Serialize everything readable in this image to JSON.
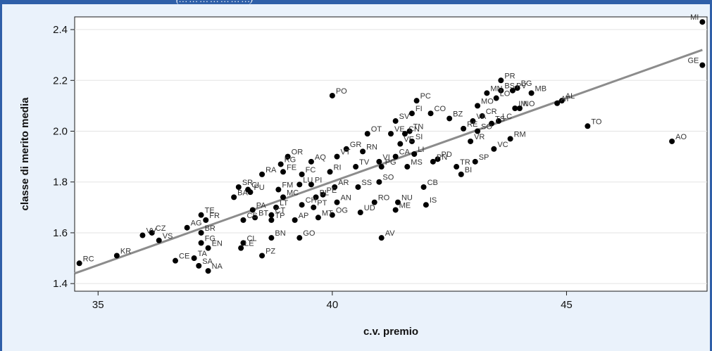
{
  "top_caption": "(…  …  …  …  …  …  …)",
  "chart_data": {
    "type": "scatter",
    "title": "",
    "xlabel": "c.v. premio",
    "ylabel": "classe di merito media",
    "xlim": [
      34.5,
      48
    ],
    "ylim": [
      1.37,
      2.45
    ],
    "xticks": [
      35,
      40,
      45
    ],
    "yticks": [
      1.4,
      1.6,
      1.8,
      2.0,
      2.2,
      2.4
    ],
    "xtick_labels": [
      "35",
      "40",
      "45"
    ],
    "ytick_labels": [
      "1.4",
      "1.6",
      "1.8",
      "2.0",
      "2.2",
      "2.4"
    ],
    "grid": "horizontal",
    "fit_line": {
      "x": [
        34.5,
        47.9
      ],
      "y": [
        1.44,
        2.32
      ]
    },
    "points": [
      {
        "label": "MI",
        "x": 47.9,
        "y": 2.43
      },
      {
        "label": "GE",
        "x": 47.9,
        "y": 2.26
      },
      {
        "label": "AO",
        "x": 47.25,
        "y": 1.96
      },
      {
        "label": "TO",
        "x": 45.45,
        "y": 2.02
      },
      {
        "label": "AL",
        "x": 44.9,
        "y": 2.12
      },
      {
        "label": "AT",
        "x": 44.8,
        "y": 2.11
      },
      {
        "label": "MB",
        "x": 44.25,
        "y": 2.15
      },
      {
        "label": "PR",
        "x": 43.6,
        "y": 2.2
      },
      {
        "label": "BG",
        "x": 43.95,
        "y": 2.17
      },
      {
        "label": "BS",
        "x": 43.6,
        "y": 2.16
      },
      {
        "label": "MN",
        "x": 43.3,
        "y": 2.15
      },
      {
        "label": "PV",
        "x": 43.85,
        "y": 2.16
      },
      {
        "label": "LO",
        "x": 43.5,
        "y": 2.13
      },
      {
        "label": "MO",
        "x": 43.1,
        "y": 2.1
      },
      {
        "label": "IM",
        "x": 43.9,
        "y": 2.09
      },
      {
        "label": "NO",
        "x": 44.0,
        "y": 2.09
      },
      {
        "label": "CR",
        "x": 43.2,
        "y": 2.06
      },
      {
        "label": "VA",
        "x": 43.0,
        "y": 2.04
      },
      {
        "label": "TS",
        "x": 43.4,
        "y": 2.03
      },
      {
        "label": "LC",
        "x": 43.55,
        "y": 2.04
      },
      {
        "label": "SO",
        "x": 43.1,
        "y": 2.0
      },
      {
        "label": "RE",
        "x": 42.8,
        "y": 2.01
      },
      {
        "label": "VR",
        "x": 42.95,
        "y": 1.96
      },
      {
        "label": "RM",
        "x": 43.8,
        "y": 1.97
      },
      {
        "label": "VC",
        "x": 43.45,
        "y": 1.93
      },
      {
        "label": "PC",
        "x": 41.8,
        "y": 2.12
      },
      {
        "label": "FI",
        "x": 41.7,
        "y": 2.07
      },
      {
        "label": "CO",
        "x": 42.1,
        "y": 2.07
      },
      {
        "label": "BZ",
        "x": 42.5,
        "y": 2.05
      },
      {
        "label": "PO",
        "x": 40.0,
        "y": 2.14
      },
      {
        "label": "SV",
        "x": 41.35,
        "y": 2.04
      },
      {
        "label": "TN",
        "x": 41.65,
        "y": 2.0
      },
      {
        "label": "CN",
        "x": 41.55,
        "y": 1.99
      },
      {
        "label": "SI",
        "x": 41.7,
        "y": 1.96
      },
      {
        "label": "VE",
        "x": 41.45,
        "y": 1.95
      },
      {
        "label": "LI",
        "x": 41.75,
        "y": 1.91
      },
      {
        "label": "OT",
        "x": 40.75,
        "y": 1.99
      },
      {
        "label": "VE",
        "x": 41.25,
        "y": 1.99
      },
      {
        "label": "PD",
        "x": 42.25,
        "y": 1.89
      },
      {
        "label": "PN",
        "x": 42.15,
        "y": 1.88
      },
      {
        "label": "TR",
        "x": 42.65,
        "y": 1.86
      },
      {
        "label": "SP",
        "x": 43.05,
        "y": 1.88
      },
      {
        "label": "BI",
        "x": 42.75,
        "y": 1.83
      },
      {
        "label": "MS",
        "x": 41.6,
        "y": 1.86
      },
      {
        "label": "PG",
        "x": 41.05,
        "y": 1.86
      },
      {
        "label": "CA",
        "x": 41.35,
        "y": 1.9
      },
      {
        "label": "VI",
        "x": 41.0,
        "y": 1.88
      },
      {
        "label": "TV",
        "x": 40.5,
        "y": 1.86
      },
      {
        "label": "GR",
        "x": 40.3,
        "y": 1.93
      },
      {
        "label": "RN",
        "x": 40.65,
        "y": 1.92
      },
      {
        "label": "VT",
        "x": 40.1,
        "y": 1.9
      },
      {
        "label": "OR",
        "x": 39.05,
        "y": 1.9
      },
      {
        "label": "RG",
        "x": 38.9,
        "y": 1.87
      },
      {
        "label": "AQ",
        "x": 39.55,
        "y": 1.88
      },
      {
        "label": "RI",
        "x": 39.95,
        "y": 1.84
      },
      {
        "label": "RA",
        "x": 38.5,
        "y": 1.83
      },
      {
        "label": "FE",
        "x": 38.95,
        "y": 1.84
      },
      {
        "label": "FC",
        "x": 39.35,
        "y": 1.83
      },
      {
        "label": "PU",
        "x": 38.25,
        "y": 1.76
      },
      {
        "label": "SR",
        "x": 38.0,
        "y": 1.78
      },
      {
        "label": "CI",
        "x": 38.2,
        "y": 1.77
      },
      {
        "label": "LU",
        "x": 39.3,
        "y": 1.79
      },
      {
        "label": "PI",
        "x": 39.55,
        "y": 1.79
      },
      {
        "label": "FM",
        "x": 38.85,
        "y": 1.77
      },
      {
        "label": "AR",
        "x": 40.05,
        "y": 1.78
      },
      {
        "label": "SS",
        "x": 40.55,
        "y": 1.78
      },
      {
        "label": "PE",
        "x": 39.8,
        "y": 1.75
      },
      {
        "label": "BL",
        "x": 39.65,
        "y": 1.74
      },
      {
        "label": "MC",
        "x": 38.95,
        "y": 1.74
      },
      {
        "label": "AN",
        "x": 40.1,
        "y": 1.72
      },
      {
        "label": "SO",
        "x": 41.0,
        "y": 1.8
      },
      {
        "label": "CB",
        "x": 41.95,
        "y": 1.78
      },
      {
        "label": "IS",
        "x": 42.0,
        "y": 1.71
      },
      {
        "label": "NU",
        "x": 41.4,
        "y": 1.72
      },
      {
        "label": "RO",
        "x": 40.9,
        "y": 1.72
      },
      {
        "label": "ME",
        "x": 41.35,
        "y": 1.69
      },
      {
        "label": "UD",
        "x": 40.6,
        "y": 1.68
      },
      {
        "label": "PT",
        "x": 39.6,
        "y": 1.7
      },
      {
        "label": "CH",
        "x": 39.35,
        "y": 1.71
      },
      {
        "label": "OG",
        "x": 40.0,
        "y": 1.67
      },
      {
        "label": "BA",
        "x": 37.9,
        "y": 1.74
      },
      {
        "label": "PA",
        "x": 38.3,
        "y": 1.69
      },
      {
        "label": "LT",
        "x": 38.8,
        "y": 1.7
      },
      {
        "label": "CT",
        "x": 38.7,
        "y": 1.67
      },
      {
        "label": "BT",
        "x": 38.35,
        "y": 1.66
      },
      {
        "label": "CS",
        "x": 38.1,
        "y": 1.65
      },
      {
        "label": "TP",
        "x": 38.7,
        "y": 1.65
      },
      {
        "label": "AP",
        "x": 39.2,
        "y": 1.65
      },
      {
        "label": "MT",
        "x": 39.7,
        "y": 1.66
      },
      {
        "label": "TE",
        "x": 37.2,
        "y": 1.67
      },
      {
        "label": "FR",
        "x": 37.3,
        "y": 1.65
      },
      {
        "label": "AG",
        "x": 36.9,
        "y": 1.62
      },
      {
        "label": "BR",
        "x": 37.2,
        "y": 1.6
      },
      {
        "label": "VV",
        "x": 35.95,
        "y": 1.59
      },
      {
        "label": "CZ",
        "x": 36.15,
        "y": 1.6
      },
      {
        "label": "VS",
        "x": 36.3,
        "y": 1.57
      },
      {
        "label": "FG",
        "x": 37.2,
        "y": 1.56
      },
      {
        "label": "EN",
        "x": 37.35,
        "y": 1.54
      },
      {
        "label": "CL",
        "x": 38.1,
        "y": 1.56
      },
      {
        "label": "LE",
        "x": 38.05,
        "y": 1.54
      },
      {
        "label": "BN",
        "x": 38.7,
        "y": 1.58
      },
      {
        "label": "GO",
        "x": 39.3,
        "y": 1.58
      },
      {
        "label": "AV",
        "x": 41.05,
        "y": 1.58
      },
      {
        "label": "PZ",
        "x": 38.5,
        "y": 1.51
      },
      {
        "label": "TA",
        "x": 37.05,
        "y": 1.5
      },
      {
        "label": "CE",
        "x": 36.65,
        "y": 1.49
      },
      {
        "label": "SA",
        "x": 37.15,
        "y": 1.47
      },
      {
        "label": "NA",
        "x": 37.35,
        "y": 1.45
      },
      {
        "label": "KR",
        "x": 35.4,
        "y": 1.51
      },
      {
        "label": "RC",
        "x": 34.6,
        "y": 1.48
      }
    ]
  }
}
